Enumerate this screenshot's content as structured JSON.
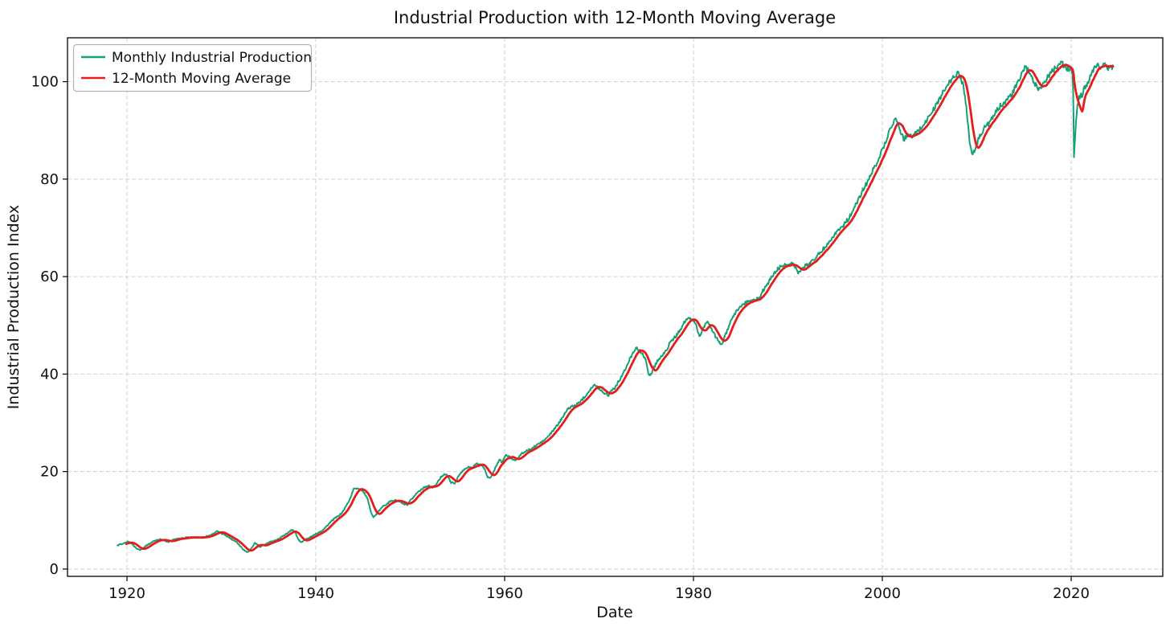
{
  "figure": {
    "title": "Industrial Production with 12-Month Moving Average",
    "xlabel": "Date",
    "ylabel": "Industrial Production Index",
    "background": "#ffffff"
  },
  "legend": {
    "position": "upper left",
    "items": [
      {
        "label": "Monthly Industrial Production",
        "color": "#17a077"
      },
      {
        "label": "12-Month Moving Average",
        "color": "#e51d1d"
      }
    ]
  },
  "chart_data": {
    "type": "line",
    "title": "Industrial Production with 12-Month Moving Average",
    "xlabel": "Date",
    "ylabel": "Industrial Production Index",
    "x_ticks": [
      1920,
      1940,
      1960,
      1980,
      2000,
      2020
    ],
    "y_ticks": [
      0,
      20,
      40,
      60,
      80,
      100
    ],
    "xlim": [
      1913.7,
      2029.7
    ],
    "ylim": [
      -1.5,
      109
    ],
    "grid": true,
    "grid_style": "dashed",
    "legend_position": "upper left",
    "x_unit": "decimal year (monthly data)",
    "series": [
      {
        "name": "Monthly Industrial Production",
        "color": "#17a077",
        "line_width": 2,
        "noise_texture_pct": 0.5,
        "points": [
          [
            1919.0,
            4.8
          ],
          [
            1919.25,
            5.1
          ],
          [
            1919.5,
            5.0
          ],
          [
            1919.75,
            5.3
          ],
          [
            1920.1,
            5.6
          ],
          [
            1920.5,
            5.3
          ],
          [
            1920.8,
            4.6
          ],
          [
            1921.1,
            4.1
          ],
          [
            1921.4,
            4.0
          ],
          [
            1921.8,
            4.4
          ],
          [
            1922.1,
            4.9
          ],
          [
            1922.4,
            5.2
          ],
          [
            1922.8,
            5.7
          ],
          [
            1923.2,
            6.0
          ],
          [
            1923.6,
            6.1
          ],
          [
            1924.0,
            5.8
          ],
          [
            1924.4,
            5.5
          ],
          [
            1924.8,
            5.9
          ],
          [
            1925.2,
            6.2
          ],
          [
            1925.6,
            6.2
          ],
          [
            1926.0,
            6.3
          ],
          [
            1926.4,
            6.5
          ],
          [
            1926.8,
            6.5
          ],
          [
            1927.2,
            6.4
          ],
          [
            1927.6,
            6.5
          ],
          [
            1928.0,
            6.5
          ],
          [
            1928.4,
            6.7
          ],
          [
            1928.8,
            6.9
          ],
          [
            1929.2,
            7.3
          ],
          [
            1929.5,
            7.8
          ],
          [
            1929.8,
            7.5
          ],
          [
            1930.1,
            7.2
          ],
          [
            1930.4,
            7.0
          ],
          [
            1930.8,
            6.5
          ],
          [
            1931.2,
            6.0
          ],
          [
            1931.6,
            5.6
          ],
          [
            1932.0,
            4.7
          ],
          [
            1932.4,
            3.9
          ],
          [
            1932.7,
            3.5
          ],
          [
            1933.0,
            3.8
          ],
          [
            1933.3,
            4.6
          ],
          [
            1933.55,
            5.4
          ],
          [
            1933.8,
            5.0
          ],
          [
            1934.1,
            4.6
          ],
          [
            1934.4,
            4.9
          ],
          [
            1934.7,
            5.1
          ],
          [
            1935.0,
            5.4
          ],
          [
            1935.4,
            5.7
          ],
          [
            1935.8,
            5.9
          ],
          [
            1936.2,
            6.3
          ],
          [
            1936.6,
            6.9
          ],
          [
            1937.0,
            7.4
          ],
          [
            1937.35,
            7.9
          ],
          [
            1937.6,
            8.0
          ],
          [
            1937.9,
            7.2
          ],
          [
            1938.2,
            5.9
          ],
          [
            1938.45,
            5.5
          ],
          [
            1938.8,
            6.0
          ],
          [
            1939.2,
            6.3
          ],
          [
            1939.6,
            6.7
          ],
          [
            1940.0,
            7.2
          ],
          [
            1940.4,
            7.6
          ],
          [
            1940.8,
            8.1
          ],
          [
            1941.2,
            8.9
          ],
          [
            1941.6,
            9.7
          ],
          [
            1942.0,
            10.4
          ],
          [
            1942.4,
            10.9
          ],
          [
            1942.8,
            11.6
          ],
          [
            1943.2,
            12.9
          ],
          [
            1943.6,
            14.3
          ],
          [
            1944.0,
            16.4
          ],
          [
            1944.4,
            16.6
          ],
          [
            1944.8,
            16.3
          ],
          [
            1945.2,
            15.4
          ],
          [
            1945.5,
            14.2
          ],
          [
            1945.8,
            12.0
          ],
          [
            1946.1,
            10.6
          ],
          [
            1946.4,
            11.2
          ],
          [
            1946.8,
            12.2
          ],
          [
            1947.2,
            13.0
          ],
          [
            1947.6,
            13.5
          ],
          [
            1948.0,
            14.0
          ],
          [
            1948.5,
            14.1
          ],
          [
            1949.0,
            13.7
          ],
          [
            1949.4,
            13.2
          ],
          [
            1949.7,
            13.1
          ],
          [
            1950.0,
            14.0
          ],
          [
            1950.4,
            14.9
          ],
          [
            1950.8,
            15.8
          ],
          [
            1951.2,
            16.4
          ],
          [
            1951.6,
            16.9
          ],
          [
            1952.0,
            17.0
          ],
          [
            1952.3,
            16.7
          ],
          [
            1952.6,
            17.0
          ],
          [
            1952.9,
            17.8
          ],
          [
            1953.3,
            19.0
          ],
          [
            1953.6,
            19.5
          ],
          [
            1953.9,
            19.2
          ],
          [
            1954.3,
            17.8
          ],
          [
            1954.7,
            17.5
          ],
          [
            1955.0,
            18.7
          ],
          [
            1955.4,
            19.8
          ],
          [
            1955.8,
            20.5
          ],
          [
            1956.2,
            20.9
          ],
          [
            1956.5,
            20.8
          ],
          [
            1956.8,
            21.3
          ],
          [
            1957.1,
            21.6
          ],
          [
            1957.5,
            21.4
          ],
          [
            1957.9,
            20.5
          ],
          [
            1958.2,
            18.8
          ],
          [
            1958.5,
            18.6
          ],
          [
            1958.8,
            19.8
          ],
          [
            1959.1,
            21.2
          ],
          [
            1959.45,
            22.4
          ],
          [
            1959.75,
            21.9
          ],
          [
            1960.1,
            23.4
          ],
          [
            1960.4,
            23.1
          ],
          [
            1960.8,
            22.6
          ],
          [
            1961.1,
            22.3
          ],
          [
            1961.5,
            23.0
          ],
          [
            1961.9,
            23.8
          ],
          [
            1962.3,
            24.2
          ],
          [
            1962.7,
            24.5
          ],
          [
            1963.1,
            25.0
          ],
          [
            1963.5,
            25.6
          ],
          [
            1963.9,
            26.0
          ],
          [
            1964.3,
            26.6
          ],
          [
            1964.7,
            27.4
          ],
          [
            1965.1,
            28.3
          ],
          [
            1965.5,
            29.3
          ],
          [
            1965.9,
            30.4
          ],
          [
            1966.3,
            31.8
          ],
          [
            1966.7,
            32.8
          ],
          [
            1967.1,
            33.4
          ],
          [
            1967.5,
            33.5
          ],
          [
            1967.9,
            34.2
          ],
          [
            1968.3,
            35.0
          ],
          [
            1968.7,
            35.9
          ],
          [
            1969.1,
            37.0
          ],
          [
            1969.5,
            37.7
          ],
          [
            1969.9,
            37.2
          ],
          [
            1970.3,
            36.5
          ],
          [
            1970.7,
            36.0
          ],
          [
            1970.95,
            35.6
          ],
          [
            1971.3,
            36.7
          ],
          [
            1971.7,
            37.2
          ],
          [
            1972.0,
            38.3
          ],
          [
            1972.4,
            39.6
          ],
          [
            1972.8,
            41.0
          ],
          [
            1973.2,
            42.8
          ],
          [
            1973.6,
            44.5
          ],
          [
            1973.9,
            45.4
          ],
          [
            1974.2,
            44.9
          ],
          [
            1974.6,
            44.3
          ],
          [
            1974.9,
            43.0
          ],
          [
            1975.2,
            40.3
          ],
          [
            1975.45,
            39.8
          ],
          [
            1975.8,
            41.3
          ],
          [
            1976.2,
            42.8
          ],
          [
            1976.6,
            43.6
          ],
          [
            1977.0,
            44.5
          ],
          [
            1977.4,
            46.0
          ],
          [
            1977.8,
            47.1
          ],
          [
            1978.2,
            47.9
          ],
          [
            1978.6,
            49.2
          ],
          [
            1979.0,
            50.6
          ],
          [
            1979.35,
            51.3
          ],
          [
            1979.7,
            51.2
          ],
          [
            1980.0,
            51.0
          ],
          [
            1980.3,
            50.0
          ],
          [
            1980.6,
            47.8
          ],
          [
            1980.9,
            48.8
          ],
          [
            1981.2,
            50.0
          ],
          [
            1981.55,
            50.6
          ],
          [
            1981.9,
            49.4
          ],
          [
            1982.3,
            47.8
          ],
          [
            1982.7,
            46.5
          ],
          [
            1983.0,
            46.2
          ],
          [
            1983.3,
            47.6
          ],
          [
            1983.7,
            49.5
          ],
          [
            1984.1,
            51.4
          ],
          [
            1984.5,
            52.8
          ],
          [
            1984.9,
            53.8
          ],
          [
            1985.3,
            54.3
          ],
          [
            1985.7,
            54.8
          ],
          [
            1986.1,
            55.2
          ],
          [
            1986.5,
            55.2
          ],
          [
            1986.9,
            55.6
          ],
          [
            1987.3,
            56.9
          ],
          [
            1987.7,
            58.2
          ],
          [
            1988.1,
            59.3
          ],
          [
            1988.5,
            60.5
          ],
          [
            1988.9,
            61.5
          ],
          [
            1989.3,
            62.2
          ],
          [
            1989.7,
            62.3
          ],
          [
            1990.1,
            62.5
          ],
          [
            1990.45,
            62.8
          ],
          [
            1990.8,
            62.0
          ],
          [
            1991.1,
            60.7
          ],
          [
            1991.5,
            61.5
          ],
          [
            1991.9,
            62.3
          ],
          [
            1992.3,
            62.8
          ],
          [
            1992.7,
            63.4
          ],
          [
            1993.1,
            64.3
          ],
          [
            1993.5,
            65.1
          ],
          [
            1993.9,
            66.0
          ],
          [
            1994.3,
            67.0
          ],
          [
            1994.7,
            68.1
          ],
          [
            1995.1,
            69.0
          ],
          [
            1995.5,
            69.8
          ],
          [
            1995.9,
            70.6
          ],
          [
            1996.3,
            71.6
          ],
          [
            1996.7,
            72.8
          ],
          [
            1997.1,
            74.3
          ],
          [
            1997.5,
            75.9
          ],
          [
            1997.9,
            77.6
          ],
          [
            1998.3,
            79.0
          ],
          [
            1998.7,
            80.5
          ],
          [
            1999.1,
            82.2
          ],
          [
            1999.5,
            83.8
          ],
          [
            2000.0,
            86.0
          ],
          [
            2000.5,
            88.5
          ],
          [
            2001.0,
            91.2
          ],
          [
            2001.4,
            92.5
          ],
          [
            2001.9,
            90.0
          ],
          [
            2002.3,
            88.0
          ],
          [
            2002.7,
            89.3
          ],
          [
            2003.1,
            88.6
          ],
          [
            2003.5,
            89.3
          ],
          [
            2004.0,
            90.3
          ],
          [
            2004.5,
            91.5
          ],
          [
            2005.0,
            93.0
          ],
          [
            2005.5,
            94.5
          ],
          [
            2006.0,
            96.3
          ],
          [
            2006.5,
            98.0
          ],
          [
            2007.0,
            99.5
          ],
          [
            2007.5,
            100.8
          ],
          [
            2007.95,
            101.8
          ],
          [
            2008.3,
            100.8
          ],
          [
            2008.6,
            99.0
          ],
          [
            2008.9,
            95.0
          ],
          [
            2009.2,
            88.5
          ],
          [
            2009.5,
            84.8
          ],
          [
            2009.8,
            86.0
          ],
          [
            2010.1,
            87.8
          ],
          [
            2010.5,
            89.5
          ],
          [
            2010.9,
            90.8
          ],
          [
            2011.3,
            91.5
          ],
          [
            2011.7,
            92.5
          ],
          [
            2012.1,
            94.0
          ],
          [
            2012.5,
            95.0
          ],
          [
            2012.9,
            95.8
          ],
          [
            2013.3,
            96.5
          ],
          [
            2013.7,
            97.3
          ],
          [
            2014.1,
            98.8
          ],
          [
            2014.5,
            100.3
          ],
          [
            2014.9,
            102.3
          ],
          [
            2015.15,
            103.0
          ],
          [
            2015.5,
            102.0
          ],
          [
            2015.9,
            100.5
          ],
          [
            2016.3,
            99.2
          ],
          [
            2016.6,
            98.5
          ],
          [
            2017.0,
            99.5
          ],
          [
            2017.4,
            100.5
          ],
          [
            2017.8,
            101.7
          ],
          [
            2018.2,
            102.6
          ],
          [
            2018.6,
            103.4
          ],
          [
            2018.95,
            104.0
          ],
          [
            2019.3,
            103.0
          ],
          [
            2019.6,
            102.6
          ],
          [
            2019.9,
            102.5
          ],
          [
            2020.12,
            102.3
          ],
          [
            2020.2,
            99.0
          ],
          [
            2020.3,
            84.5
          ],
          [
            2020.45,
            89.5
          ],
          [
            2020.6,
            94.0
          ],
          [
            2020.75,
            96.0
          ],
          [
            2020.9,
            97.0
          ],
          [
            2021.05,
            97.6
          ],
          [
            2021.15,
            96.8
          ],
          [
            2021.3,
            98.2
          ],
          [
            2021.5,
            99.0
          ],
          [
            2021.7,
            99.6
          ],
          [
            2021.9,
            100.3
          ],
          [
            2022.1,
            101.2
          ],
          [
            2022.3,
            102.0
          ],
          [
            2022.5,
            102.8
          ],
          [
            2022.7,
            103.2
          ],
          [
            2022.9,
            103.3
          ],
          [
            2023.1,
            102.9
          ],
          [
            2023.3,
            103.2
          ],
          [
            2023.5,
            103.4
          ],
          [
            2023.7,
            103.1
          ],
          [
            2023.9,
            102.8
          ],
          [
            2024.1,
            102.9
          ],
          [
            2024.3,
            103.1
          ],
          [
            2024.45,
            103.0
          ]
        ]
      },
      {
        "name": "12-Month Moving Average",
        "color": "#e51d1d",
        "line_width": 2.8,
        "derived": "trailing 12-month moving average of the monthly series",
        "window_months": 12
      }
    ]
  }
}
